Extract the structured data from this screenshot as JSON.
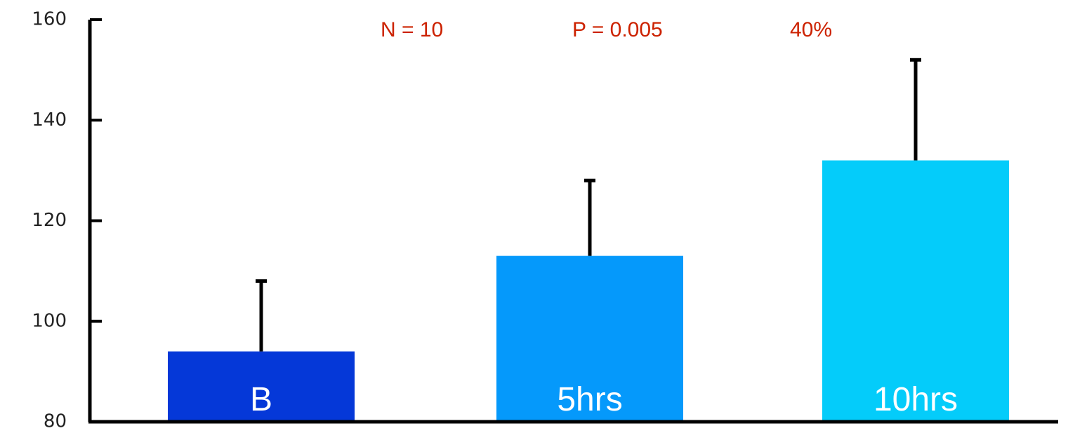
{
  "chart_data": {
    "type": "bar",
    "categories": [
      "B",
      "5hrs",
      "10hrs"
    ],
    "values": [
      94,
      113,
      132
    ],
    "error_upper": [
      108,
      128,
      152
    ],
    "bar_colors": [
      "#0538d8",
      "#0599fb",
      "#04ccfa"
    ],
    "ylim": [
      80,
      160
    ],
    "yticks": [
      80,
      100,
      120,
      140,
      160
    ],
    "title": "",
    "xlabel": "",
    "ylabel": "",
    "grid": false,
    "annotations": [
      "N = 10",
      "P = 0.005",
      "40%"
    ],
    "annotation_color": "#cc2200"
  }
}
